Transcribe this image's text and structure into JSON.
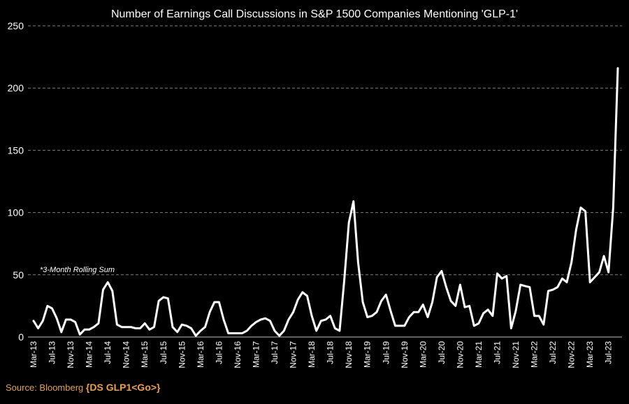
{
  "chart_data": {
    "type": "line",
    "title": "Number of Earnings Call Discussions in S&P 1500 Companies Mentioning 'GLP-1'",
    "note": "*3-Month Rolling Sum",
    "xlabel": "",
    "ylabel": "",
    "ylim": [
      0,
      250
    ],
    "yticks": [
      0,
      50,
      100,
      150,
      200,
      250
    ],
    "grid": "horizontal dashed",
    "x_tick_labels": [
      "Mar-13",
      "Jul-13",
      "Nov-13",
      "Mar-14",
      "Jul-14",
      "Nov-14",
      "Mar-15",
      "Jul-15",
      "Nov-15",
      "Mar-16",
      "Jul-16",
      "Nov-16",
      "Mar-17",
      "Jul-17",
      "Nov-17",
      "Mar-18",
      "Jul-18",
      "Nov-18",
      "Mar-19",
      "Jul-19",
      "Nov-19",
      "Mar-20",
      "Jul-20",
      "Nov-20",
      "Mar-21",
      "Jul-21",
      "Nov-21",
      "Mar-22",
      "Jul-22",
      "Nov-22",
      "Mar-23",
      "Jul-23"
    ],
    "x_start": "Mar-13",
    "x_end": "Oct-23",
    "series": [
      {
        "color": "#ffffff",
        "values": [
          13,
          7,
          13,
          25,
          23,
          15,
          4,
          14,
          14,
          12,
          2,
          6,
          6,
          8,
          11,
          38,
          44,
          37,
          10,
          8,
          8,
          8,
          7,
          7,
          11,
          6,
          8,
          29,
          32,
          31,
          8,
          4,
          10,
          9,
          7,
          1,
          5,
          8,
          20,
          28,
          28,
          14,
          3,
          3,
          3,
          3,
          5,
          9,
          12,
          14,
          15,
          13,
          5,
          1,
          5,
          14,
          20,
          30,
          36,
          33,
          17,
          5,
          13,
          14,
          17,
          7,
          5,
          45,
          92,
          109,
          60,
          28,
          16,
          17,
          20,
          29,
          34,
          21,
          9,
          9,
          9,
          16,
          20,
          20,
          26,
          16,
          28,
          48,
          53,
          40,
          29,
          25,
          42,
          24,
          25,
          9,
          11,
          19,
          22,
          17,
          51,
          47,
          49,
          7,
          21,
          42,
          41,
          40,
          17,
          17,
          10,
          37,
          38,
          40,
          47,
          44,
          60,
          86,
          104,
          101,
          44,
          48,
          52,
          65,
          52,
          104,
          216
        ]
      }
    ]
  },
  "source": {
    "label": "Source: Bloomberg",
    "command": "{DS GLP1<Go>}"
  }
}
